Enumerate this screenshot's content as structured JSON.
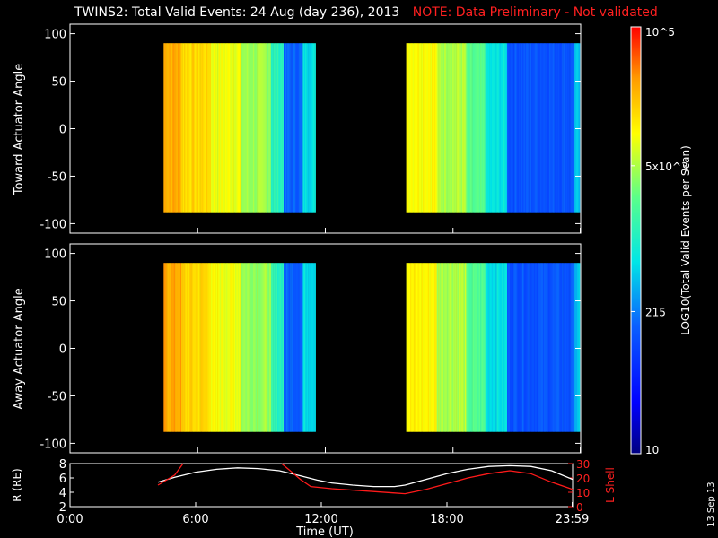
{
  "header": {
    "title": "TWINS2: Total Valid Events: 24 Aug (day 236), 2013",
    "note": "NOTE: Data Preliminary - Not validated"
  },
  "stamp": "13 Sep 13",
  "colorbar": {
    "label": "LOG10(Total Valid Events per Scan)",
    "tick_labels": [
      "10",
      "215",
      "5x10^3",
      "10^5"
    ],
    "tick_values": [
      10,
      215,
      5000,
      100000
    ]
  },
  "chart_data": [
    {
      "type": "heatmap",
      "ylabel": "Toward Actuator Angle",
      "xlim_hours": [
        0,
        24
      ],
      "ylim": [
        -110,
        110
      ],
      "yticks": [
        100,
        50,
        0,
        -50,
        -100
      ],
      "coverage_hours": [
        [
          4.4,
          11.5
        ],
        [
          15.8,
          23.9
        ]
      ],
      "angle_range": [
        -88,
        90
      ],
      "color_scale": "log",
      "color_range": [
        10,
        100000
      ]
    },
    {
      "type": "heatmap",
      "ylabel": "Away Actuator Angle",
      "xlim_hours": [
        0,
        24
      ],
      "ylim": [
        -110,
        110
      ],
      "yticks": [
        100,
        50,
        0,
        -50,
        -100
      ],
      "coverage_hours": [
        [
          4.4,
          11.5
        ],
        [
          15.8,
          23.9
        ]
      ],
      "angle_range": [
        -88,
        90
      ],
      "color_scale": "log",
      "color_range": [
        10,
        100000
      ]
    },
    {
      "type": "line",
      "ylabel_left": "R (RE)",
      "ylabel_right": "L Shell",
      "ylim_left": [
        2,
        8
      ],
      "ylim_right": [
        0,
        30
      ],
      "yticks_left": [
        2,
        4,
        6,
        8
      ],
      "yticks_right": [
        0,
        10,
        20,
        30
      ],
      "xlabel": "Time (UT)",
      "xticks": [
        "0:00",
        "6:00",
        "12:00",
        "18:00",
        "23:59"
      ],
      "xtick_hours": [
        0,
        6,
        12,
        18,
        23.98
      ],
      "series": [
        {
          "color": "#ffffff",
          "axis": "left",
          "x": [
            4.2,
            5.0,
            6.0,
            7.0,
            8.0,
            9.0,
            10.0,
            11.0,
            11.8,
            12.5,
            13.5,
            14.5,
            15.5,
            16.0,
            17.0,
            18.0,
            19.0,
            20.0,
            21.0,
            22.0,
            23.0,
            24.0
          ],
          "y": [
            5.4,
            6.1,
            6.8,
            7.2,
            7.4,
            7.3,
            7.0,
            6.3,
            5.7,
            5.3,
            5.0,
            4.8,
            4.8,
            5.0,
            5.8,
            6.6,
            7.2,
            7.6,
            7.7,
            7.6,
            7.0,
            5.8
          ]
        },
        {
          "color": "#ff1a1a",
          "axis": "right",
          "x": [
            4.2,
            5.0,
            5.4,
            null,
            10.1,
            10.6,
            11.0,
            11.5,
            12.5,
            13.5,
            14.5,
            15.5,
            16.0,
            17.0,
            18.0,
            19.0,
            20.0,
            21.0,
            22.0,
            23.0,
            24.0
          ],
          "y": [
            15.0,
            22.0,
            30.0,
            null,
            30.0,
            24.0,
            19.0,
            14.0,
            12.5,
            11.5,
            10.5,
            9.5,
            9.0,
            12.0,
            16.0,
            20.0,
            23.0,
            25.0,
            23.0,
            17.0,
            12.0
          ]
        }
      ]
    }
  ]
}
